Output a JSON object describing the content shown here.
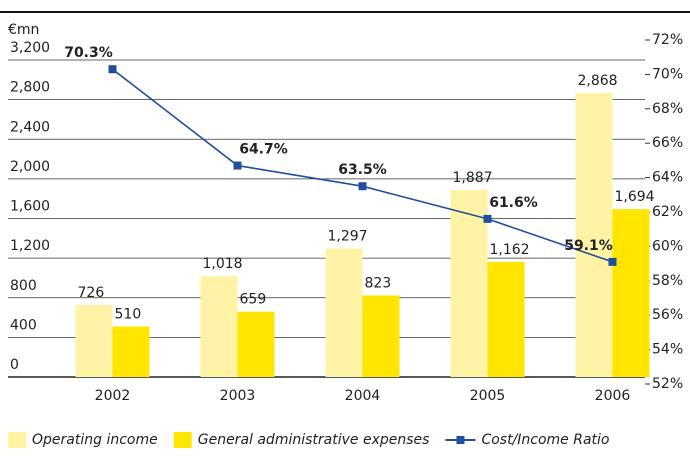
{
  "chart_data": {
    "type": "bar",
    "unit_label": "€mn",
    "categories": [
      "2002",
      "2003",
      "2004",
      "2005",
      "2006"
    ],
    "series": [
      {
        "name": "Operating income",
        "color": "#fff4a6",
        "values": [
          726,
          1018,
          1297,
          1887,
          2868
        ],
        "value_labels": [
          "726",
          "1,018",
          "1,297",
          "1,887",
          "2,868"
        ]
      },
      {
        "name": "General administrative expenses",
        "color": "#ffe500",
        "values": [
          510,
          659,
          823,
          1162,
          1694
        ],
        "value_labels": [
          "510",
          "659",
          "823",
          "1,162",
          "1,694"
        ]
      },
      {
        "name": "Cost/Income Ratio",
        "color": "#1f4f9c",
        "type": "line",
        "axis": "y2",
        "values": [
          70.3,
          64.7,
          63.5,
          61.6,
          59.1
        ],
        "value_labels": [
          "70.3%",
          "64.7%",
          "63.5%",
          "61.6%",
          "59.1%"
        ]
      }
    ],
    "ylim": [
      0,
      3200
    ],
    "yticks": [
      0,
      400,
      800,
      {
        "value": 1200,
        "label": "1,200"
      },
      {
        "value": 1600,
        "label": "1,600"
      },
      {
        "value": 2000,
        "label": "2,000"
      },
      {
        "value": 2400,
        "label": "2,400"
      },
      {
        "value": 2800,
        "label": "2,800"
      },
      {
        "value": 3200,
        "label": "3,200"
      }
    ],
    "y2lim": [
      52,
      72
    ],
    "y2ticks": [
      {
        "value": 52,
        "label": "52%"
      },
      {
        "value": 54,
        "label": "54%"
      },
      {
        "value": 56,
        "label": "56%"
      },
      {
        "value": 58,
        "label": "58%"
      },
      {
        "value": 60,
        "label": "60%"
      },
      {
        "value": 62,
        "label": "62%"
      },
      {
        "value": 64,
        "label": "64%"
      },
      {
        "value": 66,
        "label": "66%"
      },
      {
        "value": 68,
        "label": "68%"
      },
      {
        "value": 70,
        "label": "70%"
      },
      {
        "value": 72,
        "label": "72%"
      }
    ],
    "grid": true,
    "legend": "bottom"
  }
}
